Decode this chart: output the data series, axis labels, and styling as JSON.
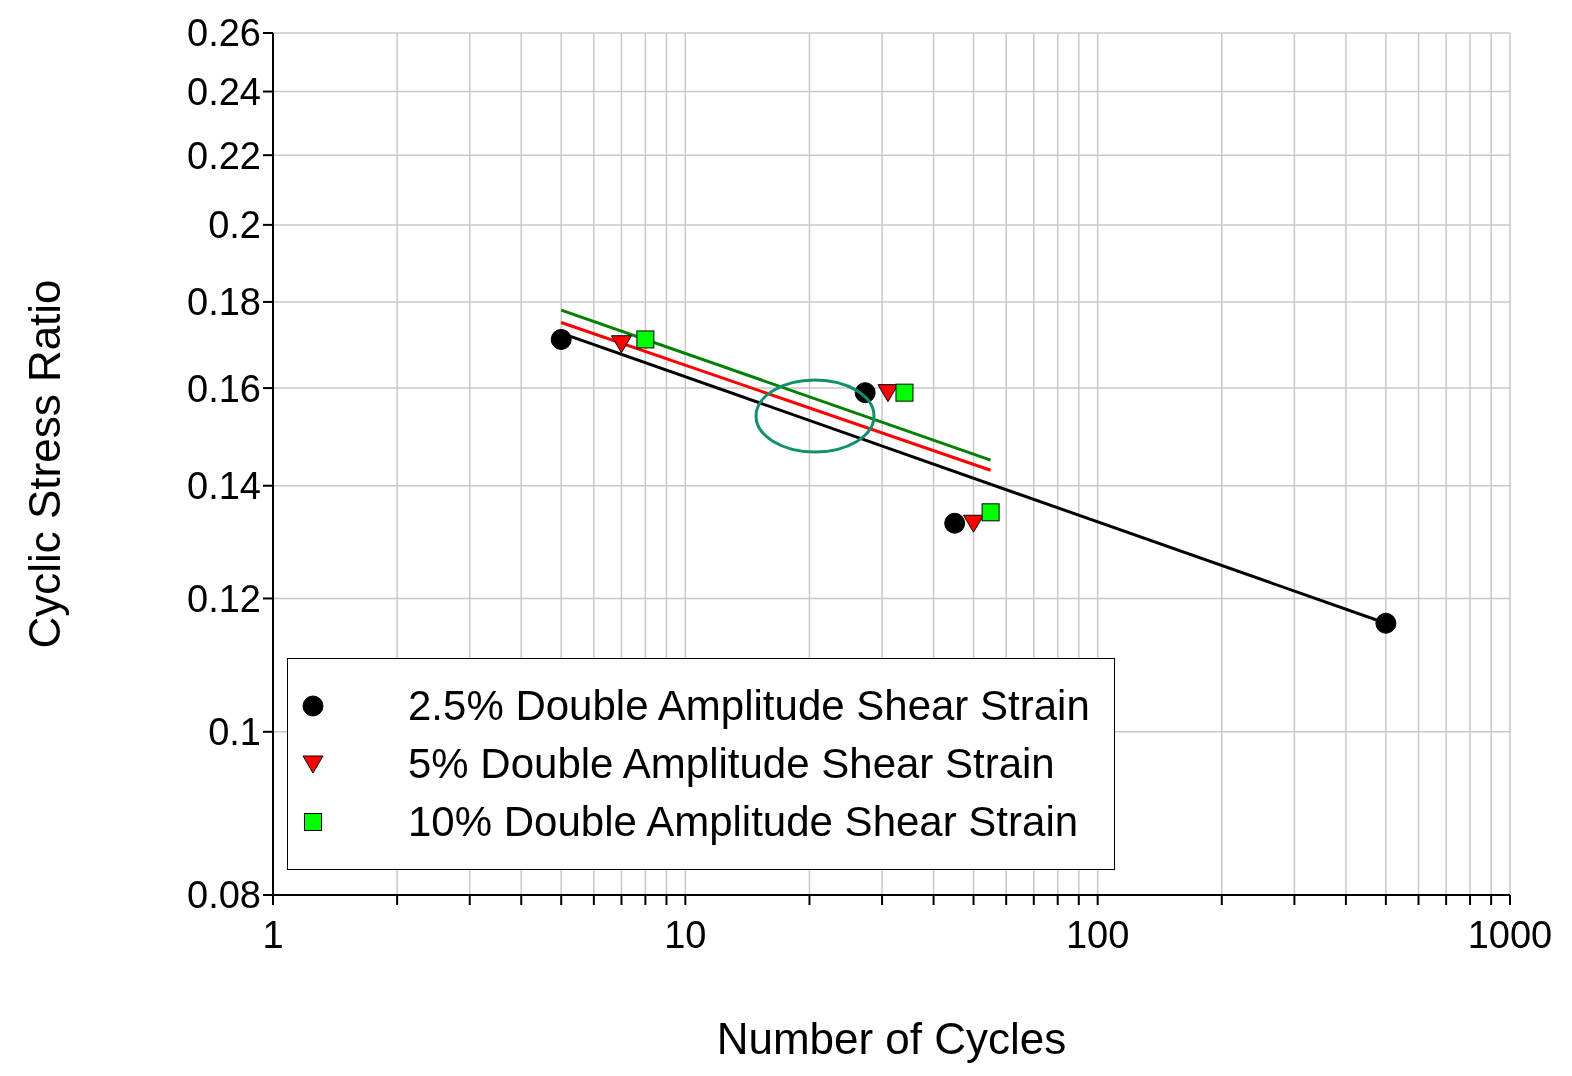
{
  "chart_data": {
    "type": "scatter",
    "xlabel": "Number of Cycles",
    "ylabel": "Cyclic Stress Ratio",
    "log": "xy",
    "grid": true,
    "legend": "bottom left",
    "xlim": [
      1,
      1000
    ],
    "xticks": [
      1,
      {
        "value": 2,
        "label": null
      },
      {
        "value": 3,
        "label": null
      },
      {
        "value": 4,
        "label": null
      },
      {
        "value": 5,
        "label": null
      },
      {
        "value": 6,
        "label": null
      },
      {
        "value": 7,
        "label": null
      },
      {
        "value": 8,
        "label": null
      },
      {
        "value": 9,
        "label": null
      },
      10,
      {
        "value": 20,
        "label": null
      },
      {
        "value": 30,
        "label": null
      },
      {
        "value": 40,
        "label": null
      },
      {
        "value": 50,
        "label": null
      },
      {
        "value": 60,
        "label": null
      },
      {
        "value": 70,
        "label": null
      },
      {
        "value": 80,
        "label": null
      },
      {
        "value": 90,
        "label": null
      },
      100,
      {
        "value": 200,
        "label": null
      },
      {
        "value": 300,
        "label": null
      },
      {
        "value": 400,
        "label": null
      },
      {
        "value": 500,
        "label": null
      },
      {
        "value": 600,
        "label": null
      },
      {
        "value": 700,
        "label": null
      },
      {
        "value": 800,
        "label": null
      },
      {
        "value": 900,
        "label": null
      },
      1000
    ],
    "ylim": [
      0.08,
      0.26
    ],
    "yticks": [
      0.08,
      0.1,
      0.12,
      0.14,
      0.16,
      0.18,
      0.2,
      0.22,
      0.24,
      0.26
    ],
    "series": [
      {
        "name": "2.5% Double Amplitude Shear Strain",
        "marker": "circle",
        "color": "#000000",
        "x": [
          5,
          27.3,
          45,
          500
        ],
        "values": [
          0.171,
          0.159,
          0.133,
          0.116
        ]
      },
      {
        "name": "5% Double Amplitude Shear Strain",
        "marker": "triangle",
        "color": "#ff0000",
        "x": [
          7,
          31,
          50
        ],
        "values": [
          0.17,
          0.159,
          0.133
        ]
      },
      {
        "name": "10% Double Amplitude Shear Strain",
        "marker": "square",
        "color": "#00ff00",
        "x": [
          8,
          34,
          55
        ],
        "values": [
          0.171,
          0.159,
          0.135
        ]
      },
      {
        "type": "line",
        "color": "#000000",
        "x": [
          5,
          500
        ],
        "values": [
          0.1725,
          0.116
        ]
      },
      {
        "type": "line",
        "color": "#ff0000",
        "x": [
          5,
          55
        ],
        "values": [
          0.175,
          0.143
        ]
      },
      {
        "type": "line",
        "color": "#008000",
        "x": [
          5,
          55
        ],
        "values": [
          0.178,
          0.145
        ]
      }
    ]
  }
}
